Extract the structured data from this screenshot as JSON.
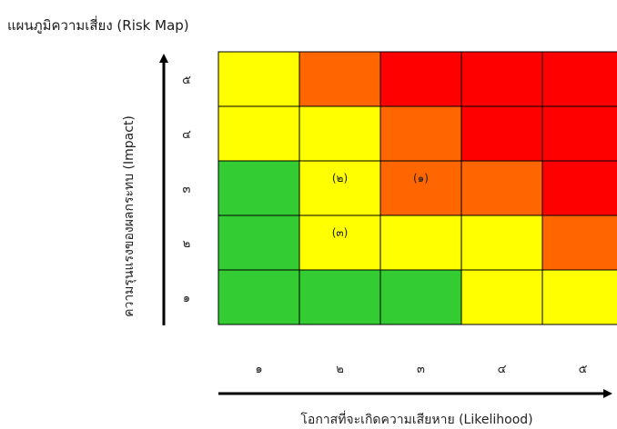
{
  "chart_data": {
    "type": "heatmap",
    "title": "แผนภูมิความเสี่ยง (Risk Map)",
    "xlabel": "โอกาสที่จะเกิดความเสียหาย (Likelihood)",
    "ylabel": "ความรุนแรงของผลกระทบ (Impact)",
    "x_ticks": [
      "๑",
      "๒",
      "๓",
      "๔",
      "๕"
    ],
    "y_ticks": [
      "๑",
      "๒",
      "๓",
      "๔",
      "๕"
    ],
    "colors": {
      "green": "#33cc33",
      "yellow": "#ffff00",
      "orange": "#ff6600",
      "red": "#ff0000"
    },
    "grid_rows_top_to_bottom": [
      [
        "yellow",
        "orange",
        "red",
        "red",
        "red"
      ],
      [
        "yellow",
        "yellow",
        "orange",
        "red",
        "red"
      ],
      [
        "green",
        "yellow",
        "orange",
        "orange",
        "red"
      ],
      [
        "green",
        "yellow",
        "yellow",
        "yellow",
        "orange"
      ],
      [
        "green",
        "green",
        "green",
        "yellow",
        "yellow"
      ]
    ],
    "annotations": [
      {
        "text": "(๑)",
        "likelihood": 3,
        "impact": 3
      },
      {
        "text": "(๒)",
        "likelihood": 2,
        "impact": 3
      },
      {
        "text": "(๓)",
        "likelihood": 2,
        "impact": 2
      }
    ]
  }
}
